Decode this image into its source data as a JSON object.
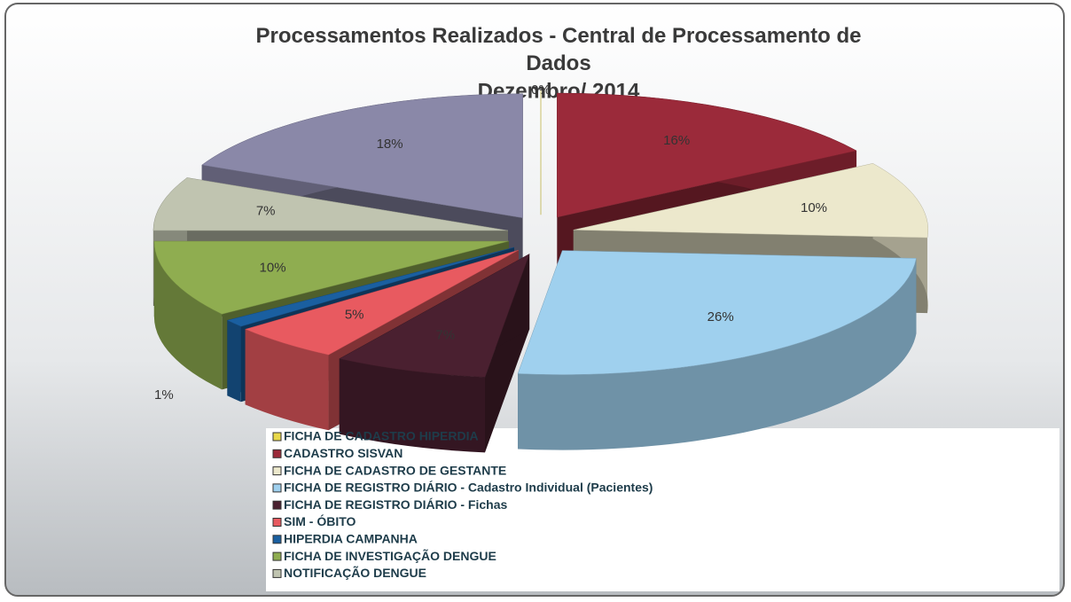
{
  "chart_data": {
    "type": "pie",
    "title": "Processamentos Realizados - Central de Processamento de Dados",
    "subtitle": "Dezembro/ 2014",
    "categories": [
      "FICHA DE CADASTRO HIPERDIA",
      "CADASTRO SISVAN",
      "FICHA DE CADASTRO DE GESTANTE",
      "FICHA DE REGISTRO DIÁRIO - Cadastro Individual (Pacientes)",
      "FICHA DE REGISTRO DIÁRIO - Fichas",
      "SIM - ÓBITO",
      "HIPERDIA CAMPANHA",
      "FICHA DE INVESTIGAÇÃO DENGUE",
      "NOTIFICAÇÃO DENGUE",
      null
    ],
    "values": [
      0,
      16,
      10,
      26,
      7,
      5,
      1,
      10,
      7,
      18
    ],
    "value_labels": [
      "0%",
      "16%",
      "10%",
      "26%",
      "7%",
      "5%",
      "1%",
      "10%",
      "7%",
      "18%"
    ],
    "colors": [
      "#e8d84a",
      "#9b2a3a",
      "#ece8cc",
      "#9fd0ee",
      "#4a2030",
      "#e85a60",
      "#1a5fa0",
      "#8fad50",
      "#c0c4b0",
      "#8a88a8"
    ]
  }
}
